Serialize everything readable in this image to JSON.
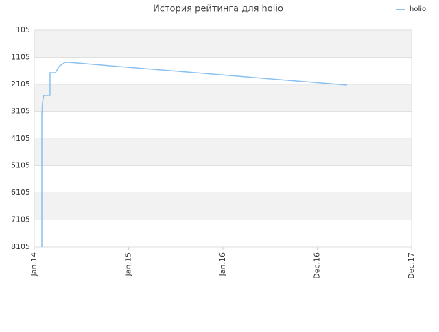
{
  "chart_data": {
    "type": "line",
    "title": "История рейтинга для holio",
    "xlim": [
      0,
      4
    ],
    "xticks": [
      {
        "value": 0,
        "label": "Jan.14"
      },
      {
        "value": 1,
        "label": "Jan.15"
      },
      {
        "value": 2,
        "label": "Jan.16"
      },
      {
        "value": 3,
        "label": "Dec.16"
      },
      {
        "value": 4,
        "label": "Dec.17"
      }
    ],
    "ylim": [
      8105,
      105
    ],
    "yticks": [
      105,
      1105,
      2105,
      3105,
      4105,
      5105,
      6105,
      7105,
      8105
    ],
    "grid": true,
    "legend": "upper right",
    "series": [
      {
        "name": "holio",
        "color": "#88c0f0",
        "x": [
          0.08,
          0.08,
          0.087,
          0.1,
          0.167,
          0.167,
          0.225,
          0.262,
          0.327,
          0.364,
          3.316
        ],
        "values": [
          8105,
          3243,
          2788,
          2510,
          2510,
          1675,
          1675,
          1447,
          1295,
          1295,
          2130
        ]
      }
    ]
  }
}
